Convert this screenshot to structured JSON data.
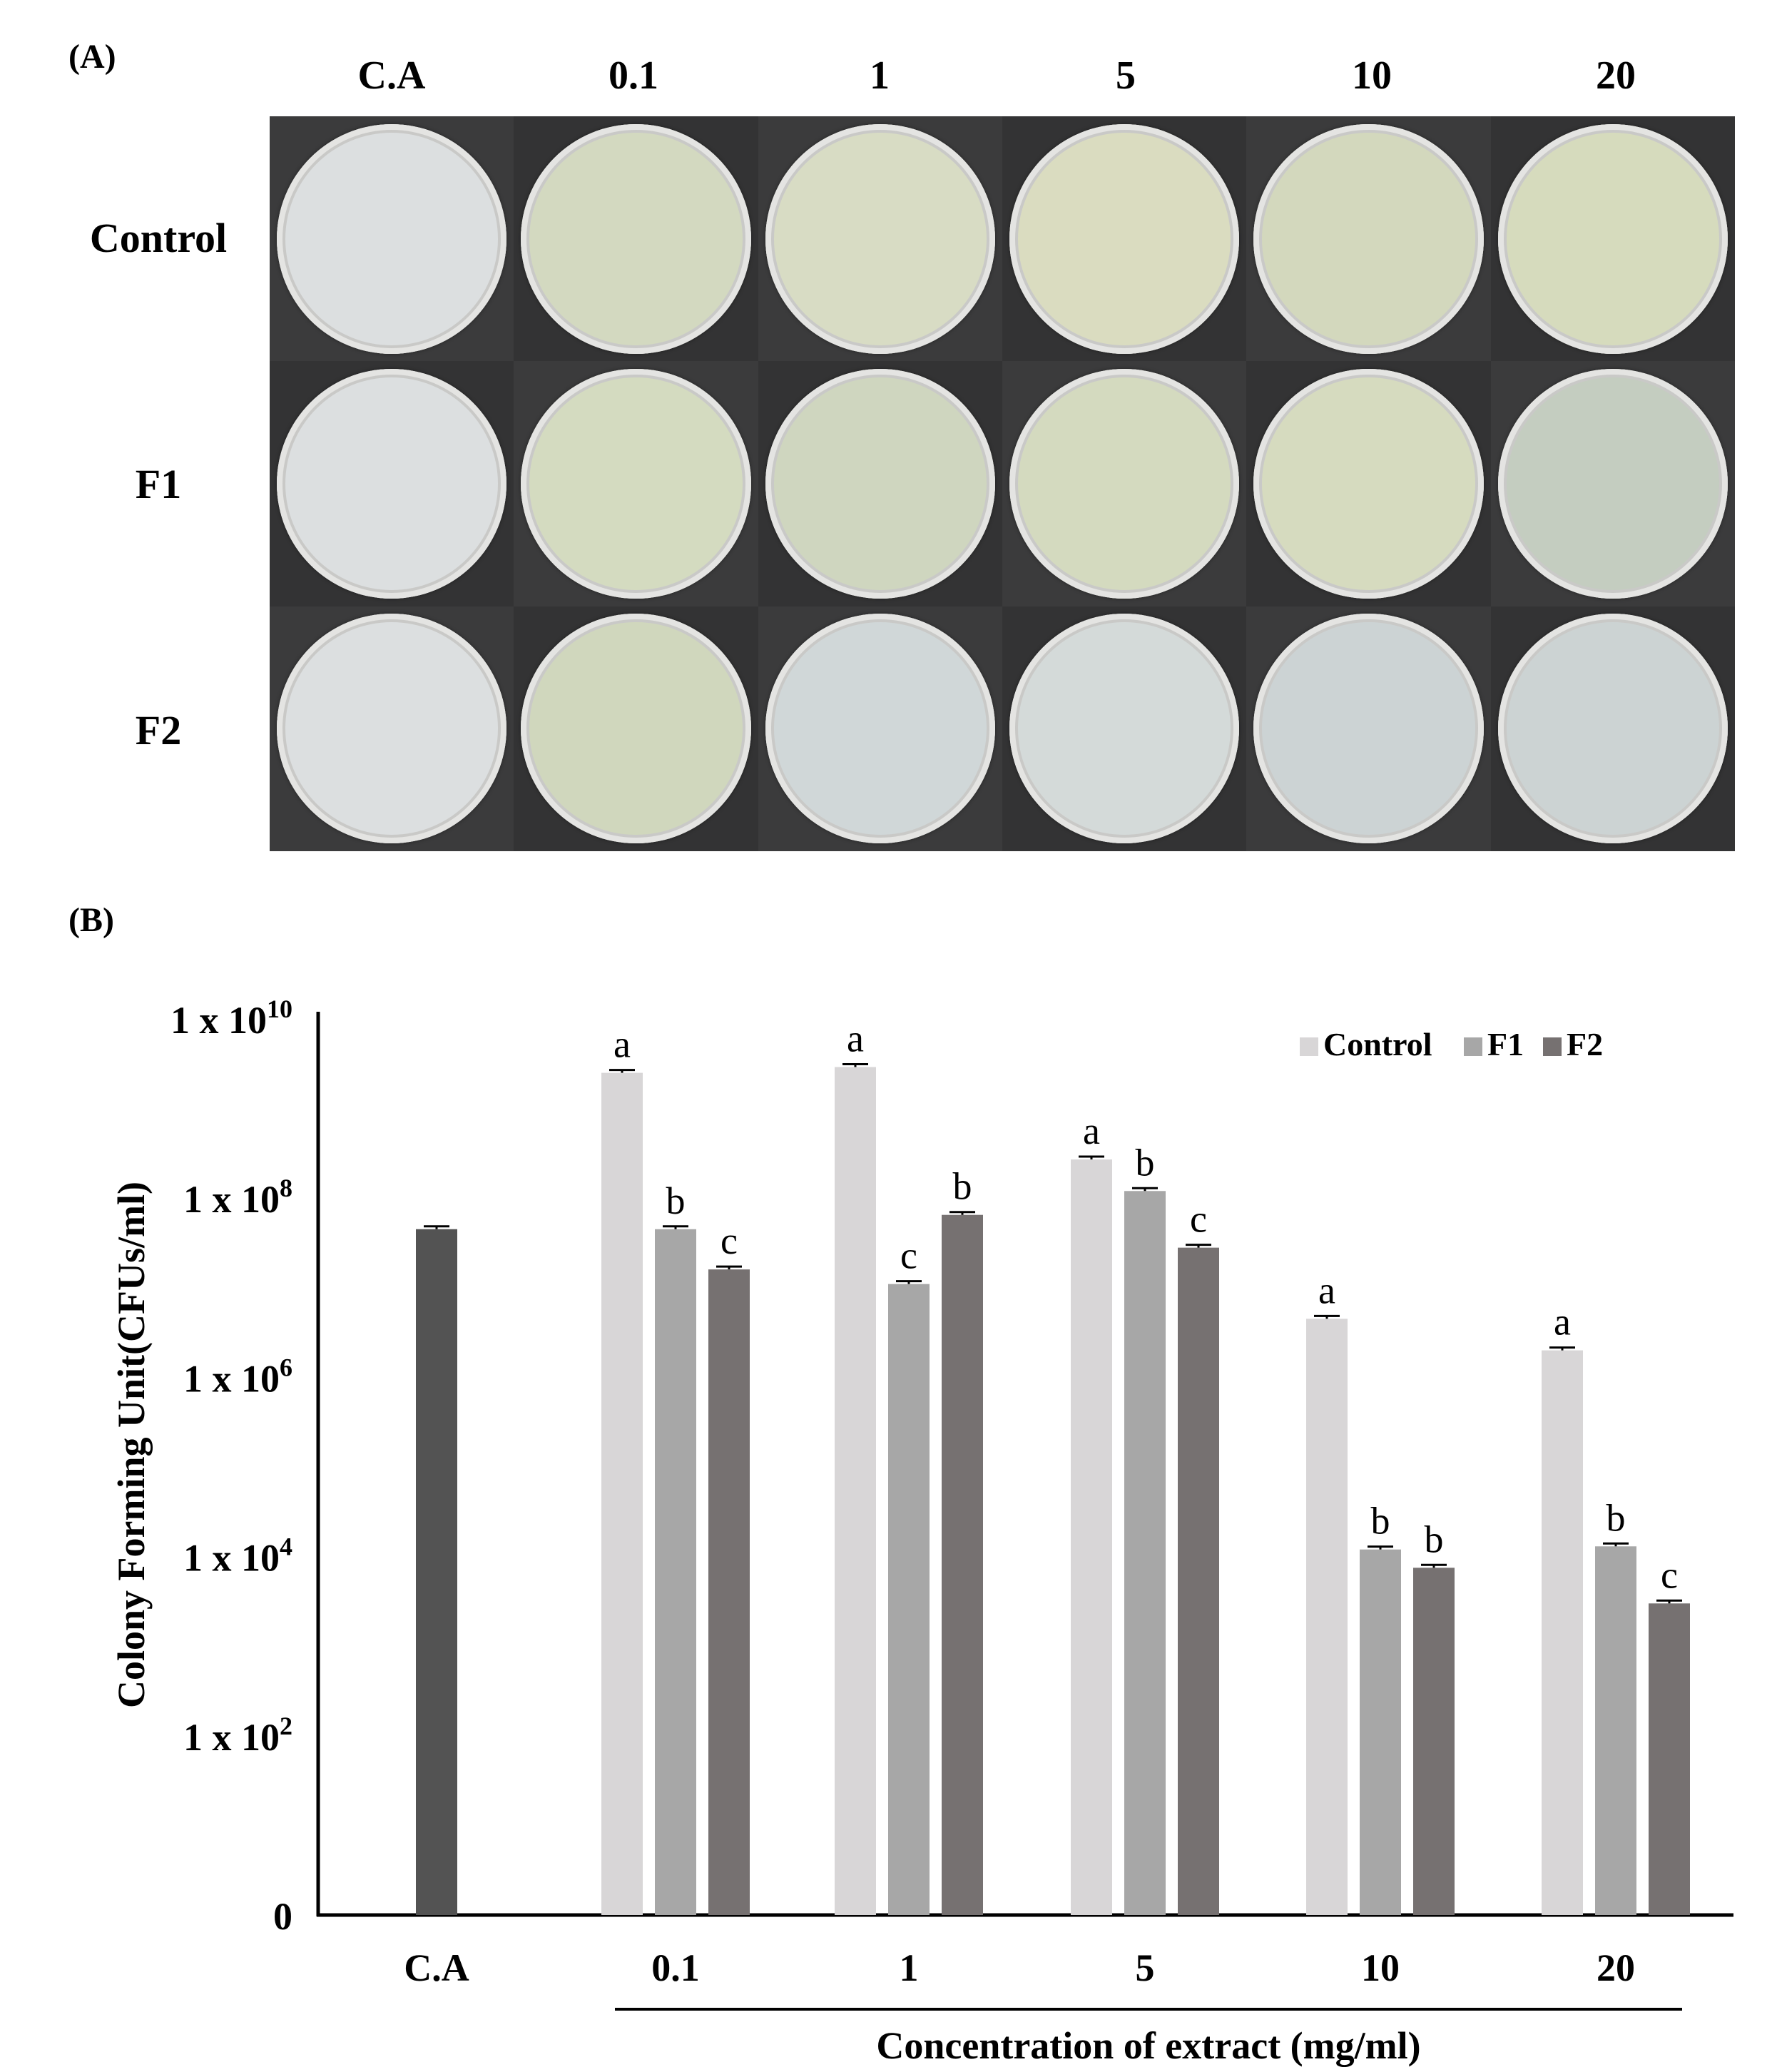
{
  "panel_a": {
    "label": "(A)",
    "columns": [
      "C.A",
      "0.1",
      "1",
      "5",
      "10",
      "20"
    ],
    "rows": [
      "Control",
      "F1",
      "F2"
    ],
    "plate_colors": [
      [
        "#dcdfe0",
        "#d3d9c0",
        "#d8dcc4",
        "#dadcc0",
        "#d3d8bd",
        "#d6dbbd"
      ],
      [
        "#dcdfe0",
        "#d4dbc0",
        "#cfd6bf",
        "#d4dabf",
        "#d6dbbf",
        "#c4cdc0"
      ],
      [
        "#dcdfe0",
        "#d0d7bd",
        "#d0d7d8",
        "#d4dad9",
        "#ccd3d4",
        "#ccd3d3"
      ]
    ]
  },
  "panel_b": {
    "label": "(B)"
  },
  "chart_data": {
    "type": "bar",
    "ylabel": "Colony Forming Unit(CFUs/ml)",
    "xlabel": "Concentration of extract (mg/ml)",
    "yscale": "log",
    "yticks": [
      {
        "value": 1,
        "label_base": "0",
        "label_exp": ""
      },
      {
        "value": 100,
        "label_base": "1 x 10",
        "label_exp": "2"
      },
      {
        "value": 10000,
        "label_base": "1 x 10",
        "label_exp": "4"
      },
      {
        "value": 1000000,
        "label_base": "1 x 10",
        "label_exp": "6"
      },
      {
        "value": 100000000,
        "label_base": "1 x 10",
        "label_exp": "8"
      },
      {
        "value": 10000000000,
        "label_base": "1 x 10",
        "label_exp": "10"
      }
    ],
    "categories": [
      "C.A",
      "0.1",
      "1",
      "5",
      "10",
      "20"
    ],
    "ca_bar": {
      "value": 45000000,
      "color": "#535353"
    },
    "series": [
      {
        "name": "Control",
        "color": "#d8d6d7",
        "values": [
          null,
          2500000000,
          2900000000,
          270000000,
          4500000,
          2000000
        ],
        "letters": [
          "",
          "a",
          "a",
          "a",
          "a",
          "a"
        ]
      },
      {
        "name": "F1",
        "color": "#a7a7a7",
        "values": [
          null,
          45000000,
          11000000,
          120000000,
          12000,
          13000
        ],
        "letters": [
          "",
          "b",
          "c",
          "b",
          "b",
          "b"
        ]
      },
      {
        "name": "F2",
        "color": "#767171",
        "values": [
          null,
          16000000,
          65000000,
          28000000,
          7500,
          3000
        ],
        "letters": [
          "",
          "c",
          "b",
          "c",
          "b",
          "c"
        ]
      }
    ],
    "legend_position": "top-right"
  }
}
